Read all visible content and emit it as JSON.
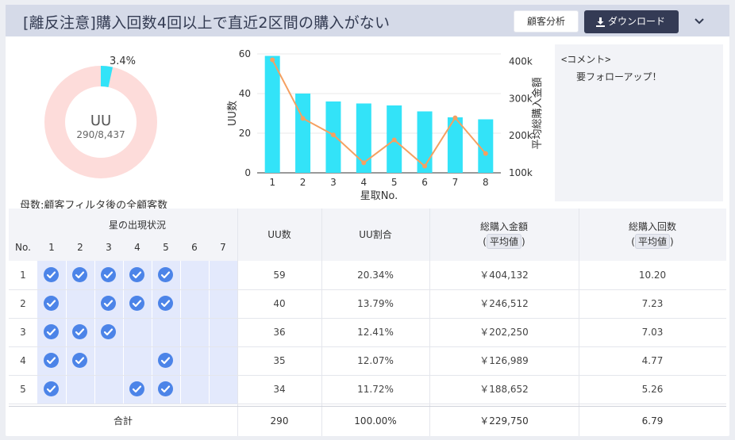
{
  "header": {
    "title": "[離反注意]購入回数4回以上で直近2区間の購入がない",
    "analysis_button": "顧客分析",
    "download_button": "ダウンロード"
  },
  "donut": {
    "percent_label": "3.4%",
    "center_label": "UU",
    "center_sub": "290/8,437",
    "fraction": 0.034,
    "parent_note": "母数:顧客フィルタ後の全顧客数"
  },
  "colors": {
    "bar": "#33e3f8",
    "line": "#f5a061",
    "donut_bg": "#fddcda",
    "check": "#4c84e8",
    "header": "#d5dae8"
  },
  "chart_data": {
    "type": "bar",
    "categories": [
      "1",
      "2",
      "3",
      "4",
      "5",
      "6",
      "7",
      "8"
    ],
    "series": [
      {
        "type": "bar",
        "axis": "left",
        "values": [
          59,
          40,
          36,
          35,
          34,
          31,
          28,
          27
        ]
      },
      {
        "type": "line",
        "axis": "right",
        "values": [
          404132,
          246512,
          202250,
          126989,
          188652,
          118000,
          248000,
          152000
        ]
      }
    ],
    "xlabel": "星取No.",
    "ylabel": "UU数",
    "y2label": "平均総購入金額",
    "ylim": [
      0,
      60
    ],
    "y2lim": [
      100000,
      420000
    ],
    "yticks": [
      "0",
      "20",
      "40",
      "60"
    ],
    "y2ticks": [
      "100k",
      "200k",
      "300k",
      "400k"
    ],
    "grid": true
  },
  "comment": {
    "title": "<コメント>",
    "body": "要フォローアップ！"
  },
  "table": {
    "group_header": "星の出現状況",
    "no_header": "No.",
    "star_numbers": [
      "1",
      "2",
      "3",
      "4",
      "5",
      "6",
      "7"
    ],
    "uu_header": "UU数",
    "ratio_header": "UU割合",
    "amount_header": "総購入金額",
    "count_header": "総購入回数",
    "avg_label": "平均値",
    "paren_open": "(",
    "paren_close": ")",
    "rows": [
      {
        "no": "1",
        "stars": [
          1,
          1,
          1,
          1,
          1,
          0,
          0
        ],
        "uu": "59",
        "ratio": "20.34%",
        "amount": "￥404,132",
        "count": "10.20"
      },
      {
        "no": "2",
        "stars": [
          1,
          0,
          1,
          1,
          1,
          0,
          0
        ],
        "uu": "40",
        "ratio": "13.79%",
        "amount": "￥246,512",
        "count": "7.23"
      },
      {
        "no": "3",
        "stars": [
          1,
          1,
          1,
          0,
          0,
          0,
          0
        ],
        "uu": "36",
        "ratio": "12.41%",
        "amount": "￥202,250",
        "count": "7.03"
      },
      {
        "no": "4",
        "stars": [
          1,
          1,
          0,
          0,
          1,
          0,
          0
        ],
        "uu": "35",
        "ratio": "12.07%",
        "amount": "￥126,989",
        "count": "4.77"
      },
      {
        "no": "5",
        "stars": [
          1,
          0,
          0,
          1,
          1,
          0,
          0
        ],
        "uu": "34",
        "ratio": "11.72%",
        "amount": "￥188,652",
        "count": "5.26"
      }
    ],
    "total": {
      "label": "合計",
      "uu": "290",
      "ratio": "100.00%",
      "amount": "￥229,750",
      "count": "6.79"
    }
  }
}
